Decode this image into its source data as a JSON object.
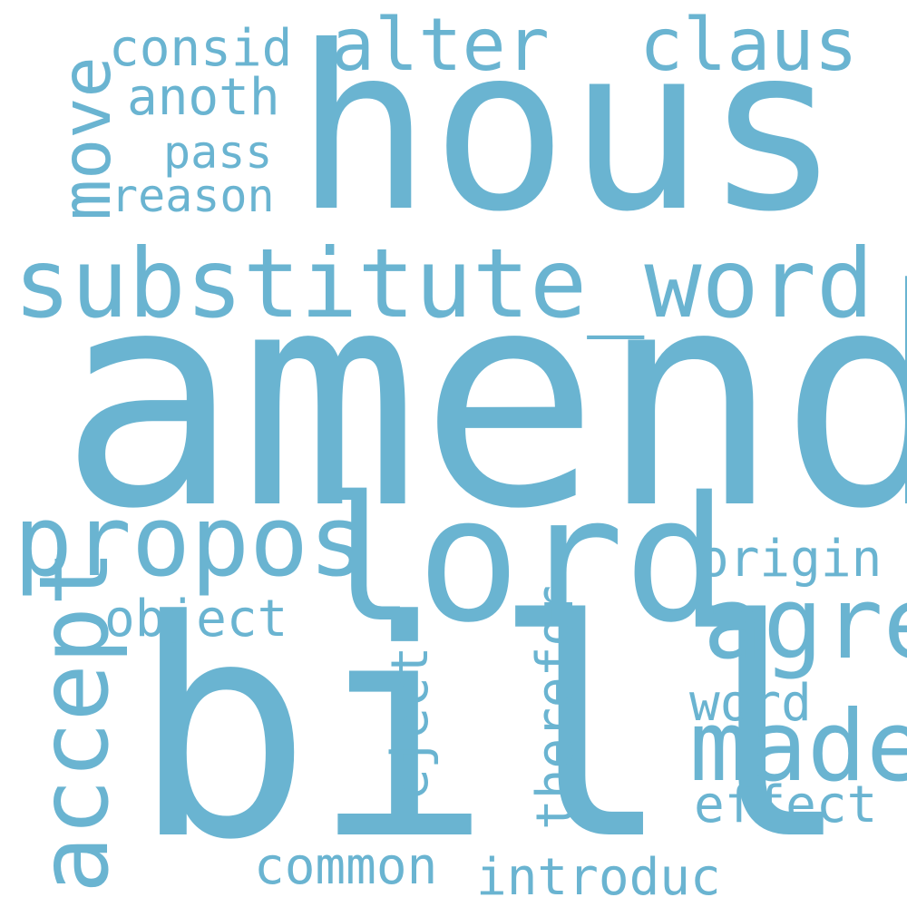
{
  "color": "#6ab4d1",
  "words": {
    "amend": "amend",
    "hous": "hous",
    "bill": "bill",
    "lord": "lord",
    "substitute_word": "substitute_word",
    "propos": "propos",
    "alter": "alter",
    "claus": "claus",
    "agre": "agre",
    "made": "made",
    "move": "move",
    "accept": "accept",
    "consid": "consid",
    "anoth": "anoth",
    "pass": "pass",
    "reason": "reason",
    "origin": "origin",
    "object": "object",
    "reject": "reject",
    "therefor": "therefor",
    "word": "word",
    "effect": "effect",
    "common": "common",
    "introduc": "introduc"
  }
}
